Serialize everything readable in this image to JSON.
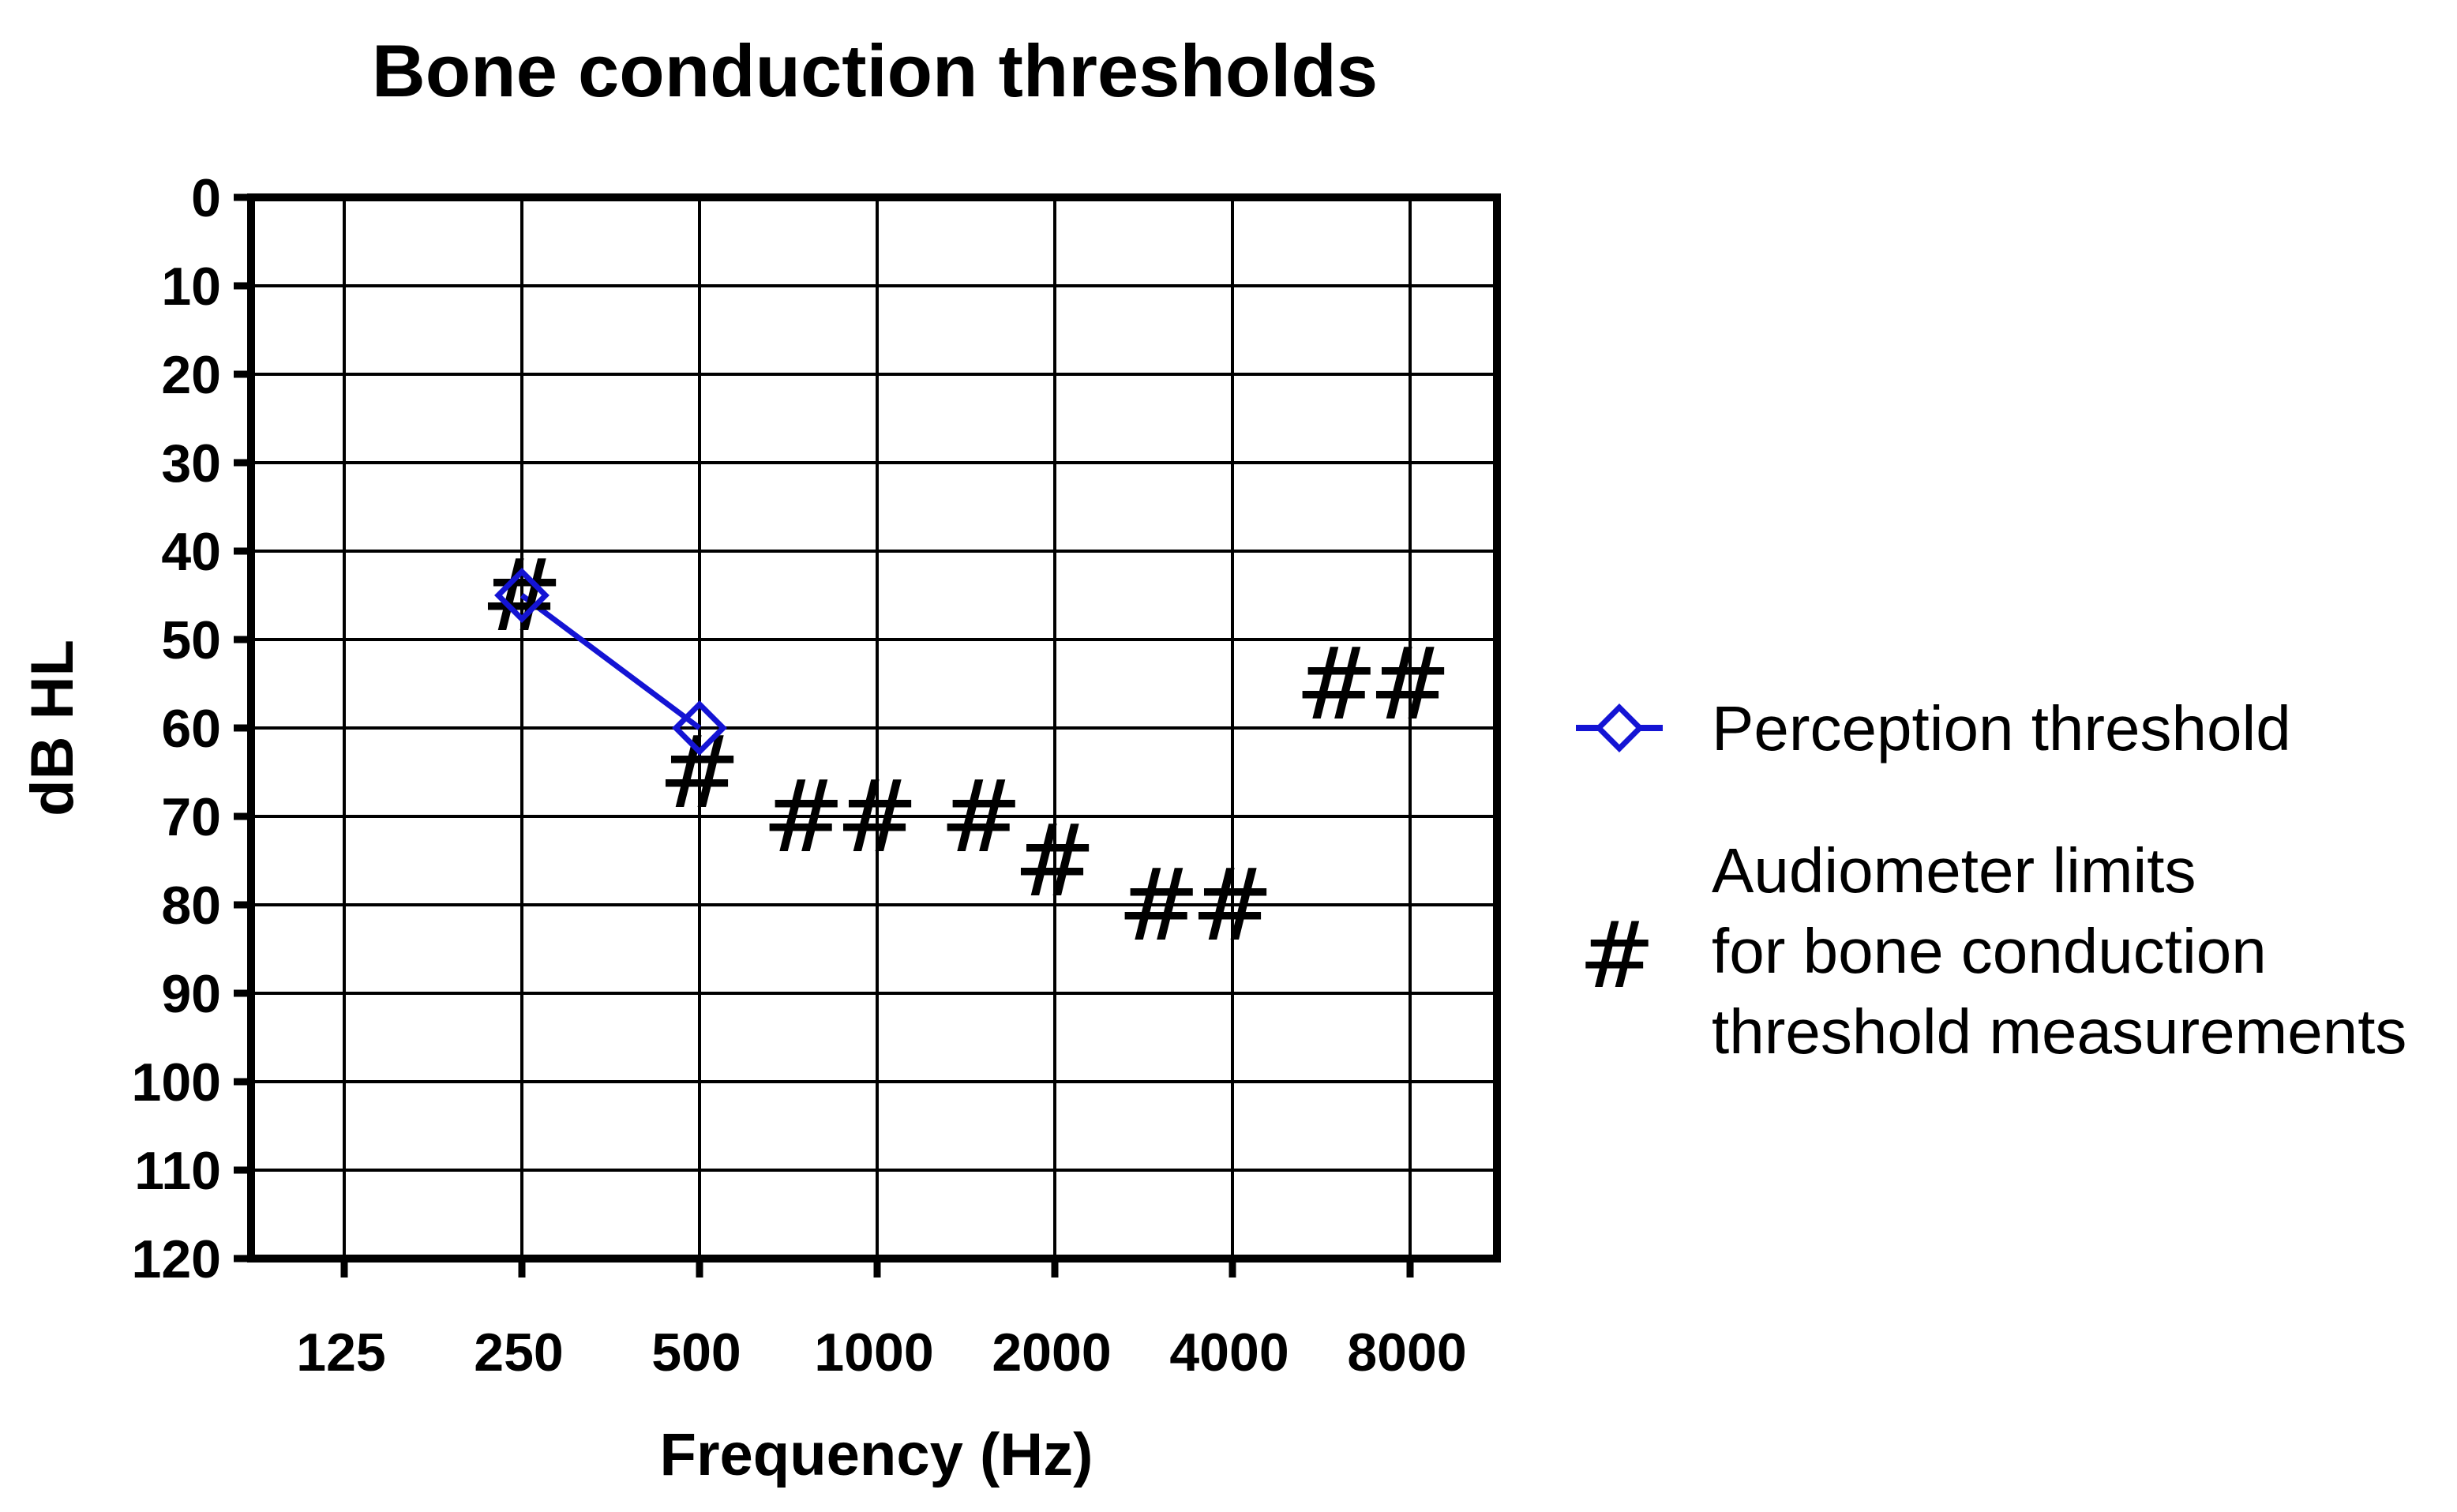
{
  "chart_data": {
    "type": "line",
    "title": "Bone conduction thresholds",
    "xlabel": "Frequency (Hz)",
    "ylabel": "dB HL",
    "x_scale": "log2",
    "x_ticks": [
      "125",
      "250",
      "500",
      "1000",
      "2000",
      "4000",
      "8000"
    ],
    "x_tick_values": [
      125,
      250,
      500,
      1000,
      2000,
      4000,
      8000
    ],
    "y_ticks": [
      "0",
      "10",
      "20",
      "30",
      "40",
      "50",
      "60",
      "70",
      "80",
      "90",
      "100",
      "110",
      "120"
    ],
    "ylim": [
      0,
      120
    ],
    "y_inverted": true,
    "grid": true,
    "legend_position": "right",
    "series": [
      {
        "name": "Perception threshold",
        "color": "#1414d4",
        "marker": "diamond",
        "points": [
          {
            "x": 250,
            "y": 45
          },
          {
            "x": 500,
            "y": 60
          }
        ]
      },
      {
        "name_lines": [
          "Audiometer limits",
          "for bone conduction",
          "threshold measurements"
        ],
        "color": "#000000",
        "marker": "#",
        "points": [
          {
            "x": 250,
            "y": 45
          },
          {
            "x": 500,
            "y": 65
          },
          {
            "x": 750,
            "y": 70
          },
          {
            "x": 1000,
            "y": 70
          },
          {
            "x": 1500,
            "y": 70
          },
          {
            "x": 2000,
            "y": 75
          },
          {
            "x": 3000,
            "y": 80
          },
          {
            "x": 4000,
            "y": 80
          },
          {
            "x": 6000,
            "y": 55
          },
          {
            "x": 8000,
            "y": 55
          }
        ]
      }
    ]
  }
}
